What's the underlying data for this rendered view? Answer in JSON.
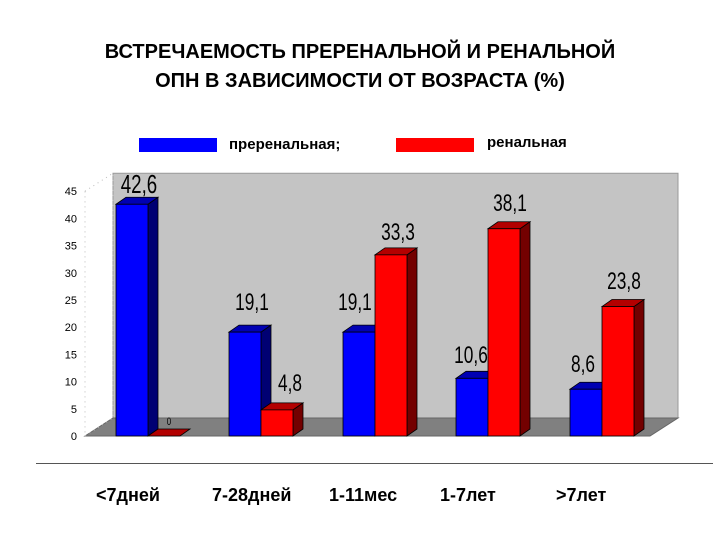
{
  "title": {
    "line1": "ВСТРЕЧАЕМОСТЬ ПРЕРЕНАЛЬНОЙ И РЕНАЛЬНОЙ",
    "line2": "ОПН В ЗАВИСИМОСТИ ОТ ВОЗРАСТА (%)"
  },
  "legend": [
    {
      "label": "преренальная;",
      "color": "#0000ff"
    },
    {
      "label": "ренальная",
      "color": "#ff0000"
    }
  ],
  "chart_data": {
    "type": "bar",
    "title": "ВСТРЕЧАЕМОСТЬ ПРЕРЕНАЛЬНОЙ И РЕНАЛЬНОЙ ОПН В ЗАВИСИМОСТИ ОТ ВОЗРАСТА (%)",
    "categories": [
      "<7дней",
      "7-28дней",
      "1-11мес",
      "1-7лет",
      ">7лет"
    ],
    "series": [
      {
        "name": "преренальная;",
        "values": [
          42.6,
          19.1,
          19.1,
          10.6,
          8.6
        ],
        "labels": [
          "42,6",
          "19,1",
          "19,1",
          "10,6",
          "8,6"
        ],
        "color": "#0000ff"
      },
      {
        "name": "ренальная",
        "values": [
          0,
          4.8,
          33.3,
          38.1,
          23.8
        ],
        "labels": [
          "0",
          "4,8",
          "33,3",
          "38,1",
          "23,8"
        ],
        "color": "#ff0000"
      }
    ],
    "ylim": [
      0,
      45
    ],
    "yticks": [
      "0",
      "5",
      "10",
      "15",
      "20",
      "25",
      "30",
      "35",
      "40",
      "45"
    ],
    "grid": false,
    "legend_position": "top"
  }
}
